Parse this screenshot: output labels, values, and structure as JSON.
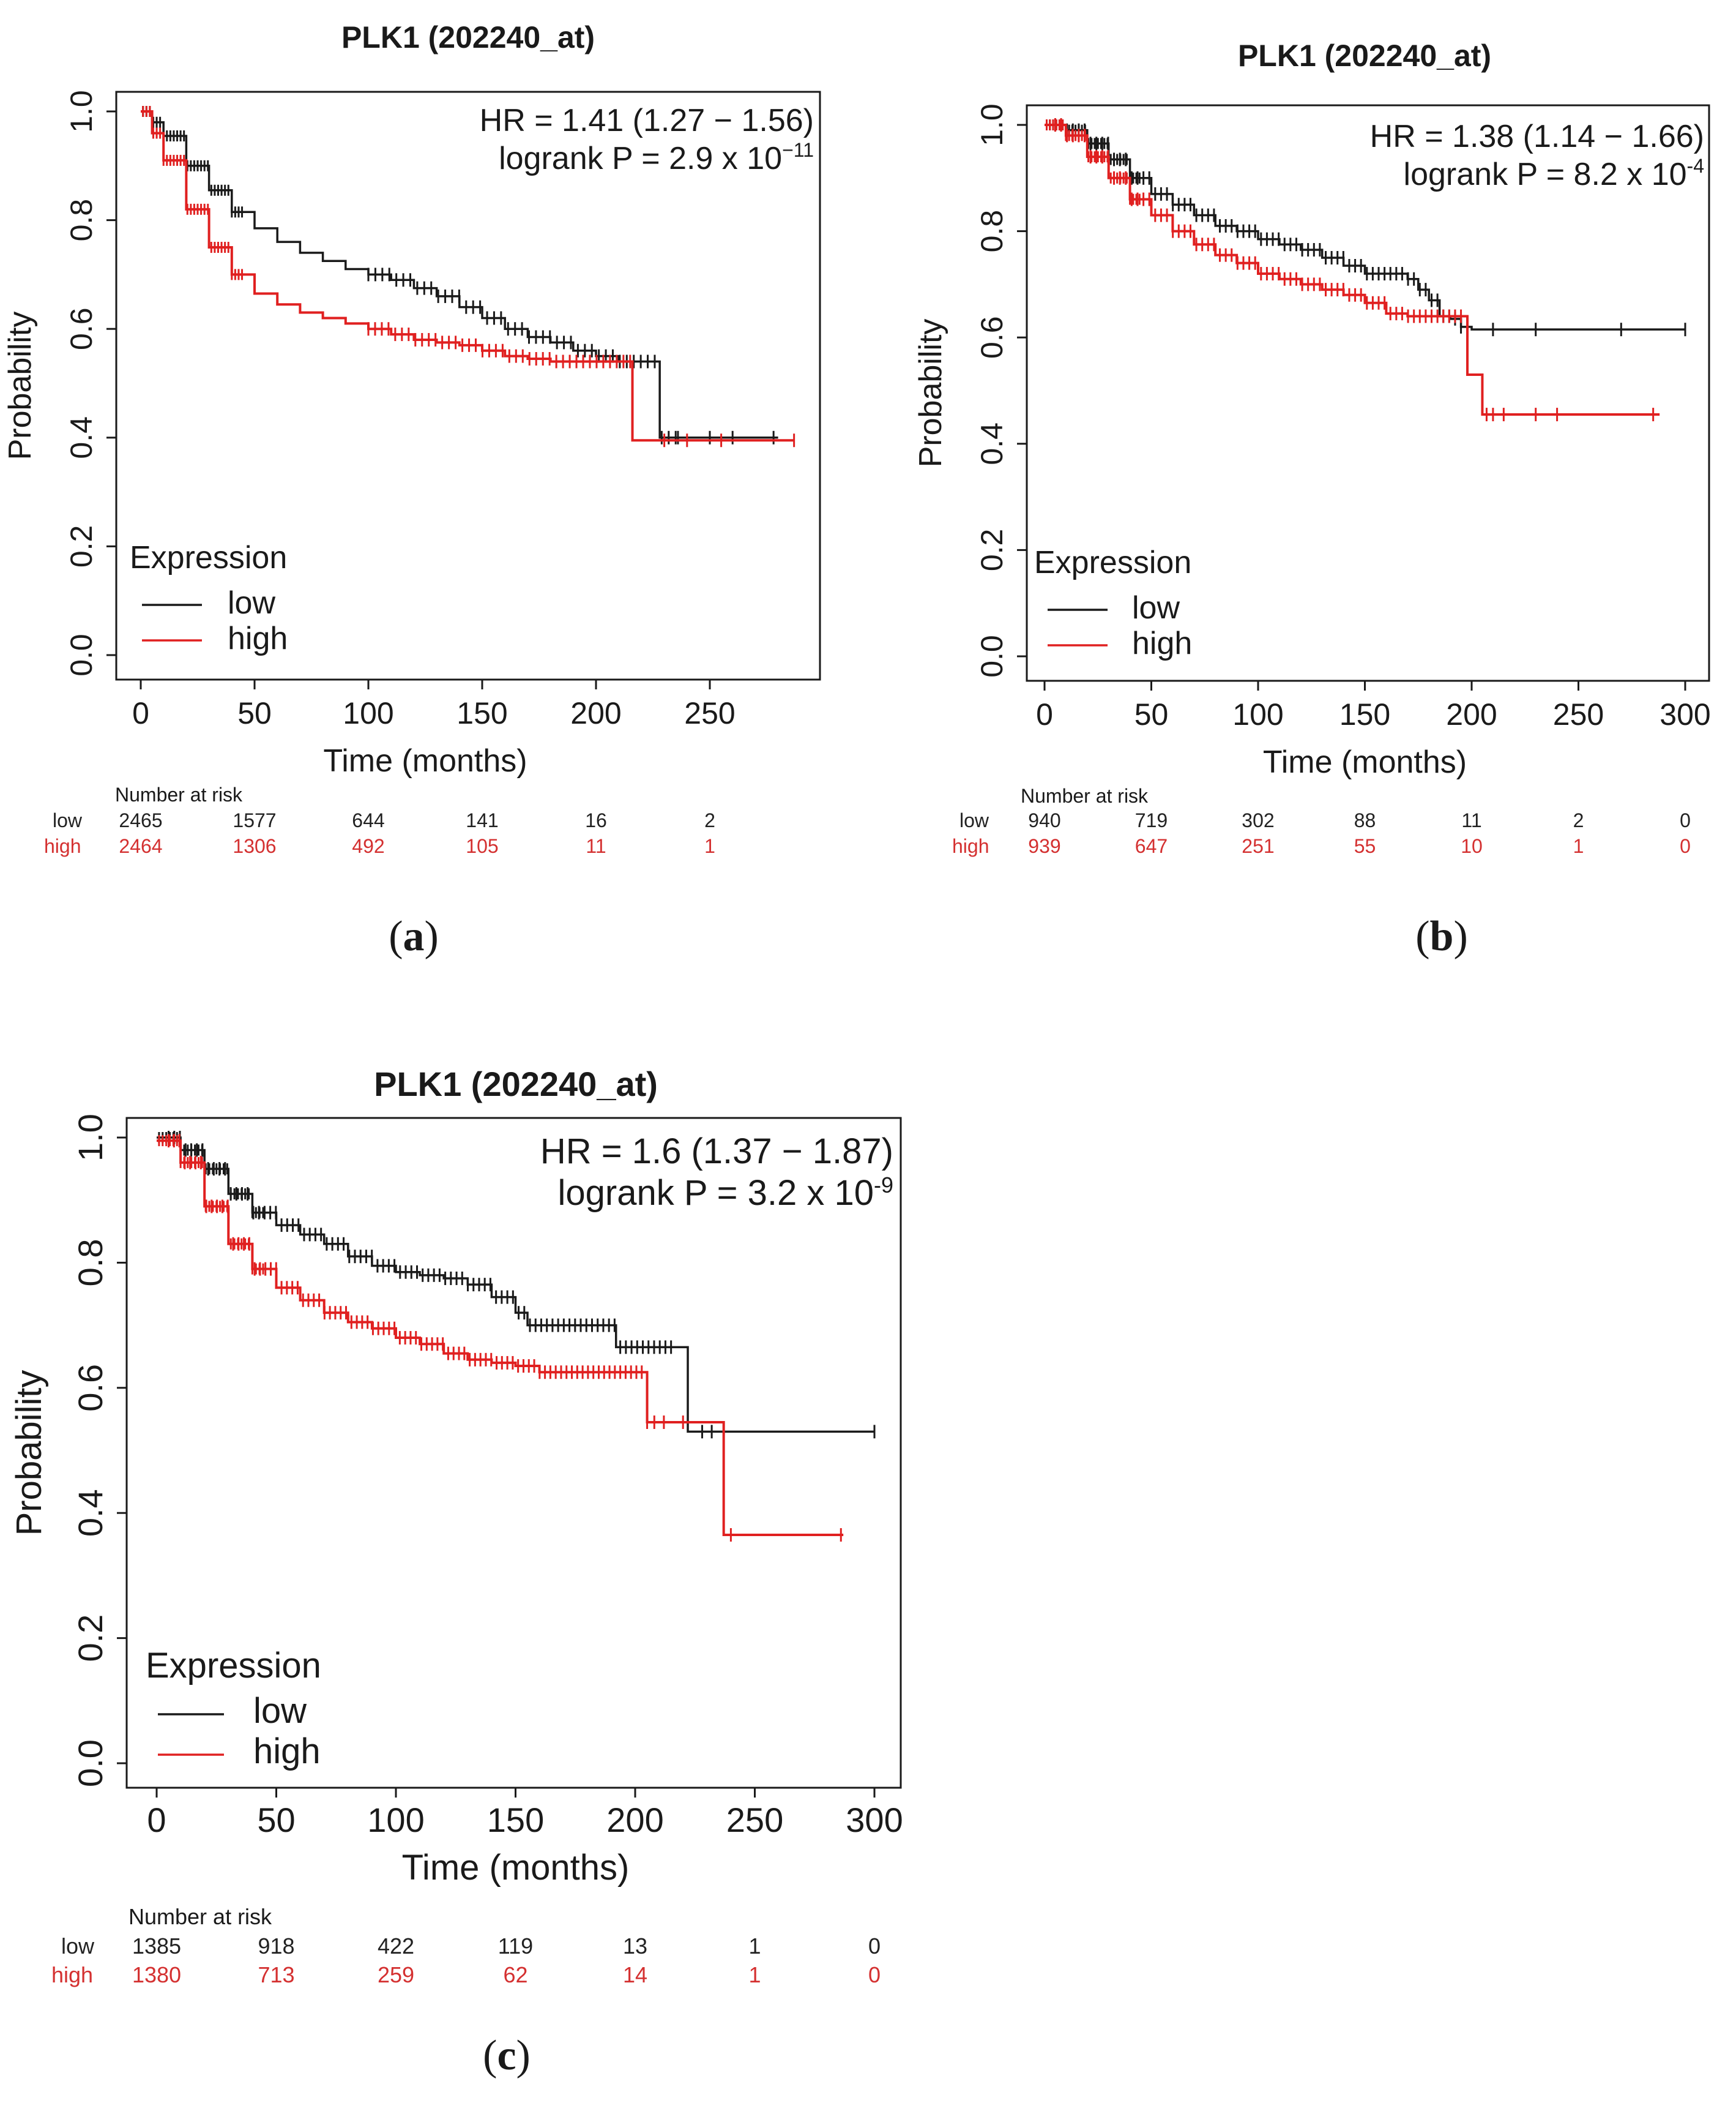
{
  "chart_data": [
    {
      "id": "a",
      "type": "line",
      "subtype": "kaplan-meier",
      "title": "PLK1 (202240_at)",
      "xlabel": "Time (months)",
      "ylabel": "Probability",
      "xlim": [
        0,
        290
      ],
      "ylim": [
        0,
        1
      ],
      "xticks": [
        "0",
        "50",
        "100",
        "150",
        "200",
        "250"
      ],
      "yticks": [
        "0.0",
        "0.2",
        "0.4",
        "0.6",
        "0.8",
        "1.0"
      ],
      "hr_text": "HR = 1.41 (1.27 − 1.56)",
      "logrank_text": "logrank P = 2.9 x 10",
      "logrank_exp": "−11",
      "legend": {
        "title": "Expression",
        "entries": [
          "low",
          "high"
        ]
      },
      "colors": {
        "low": "#1a1a1a",
        "high": "#e02020"
      },
      "series": [
        {
          "name": "low",
          "points": [
            [
              0,
              1.0
            ],
            [
              5,
              0.98
            ],
            [
              10,
              0.955
            ],
            [
              20,
              0.9
            ],
            [
              30,
              0.855
            ],
            [
              40,
              0.815
            ],
            [
              50,
              0.785
            ],
            [
              60,
              0.76
            ],
            [
              70,
              0.74
            ],
            [
              80,
              0.725
            ],
            [
              90,
              0.71
            ],
            [
              100,
              0.7
            ],
            [
              110,
              0.69
            ],
            [
              120,
              0.675
            ],
            [
              130,
              0.66
            ],
            [
              140,
              0.64
            ],
            [
              150,
              0.62
            ],
            [
              160,
              0.6
            ],
            [
              170,
              0.585
            ],
            [
              180,
              0.575
            ],
            [
              190,
              0.56
            ],
            [
              200,
              0.55
            ],
            [
              210,
              0.54
            ],
            [
              228,
              0.54
            ],
            [
              228,
              0.4
            ],
            [
              280,
              0.4
            ]
          ],
          "censor_start": 100,
          "censor_end": 235,
          "censor_count": 45,
          "late_censors": [
            [
              236,
              0.4
            ],
            [
              250,
              0.4
            ],
            [
              260,
              0.4
            ],
            [
              278,
              0.4
            ]
          ]
        },
        {
          "name": "high",
          "points": [
            [
              0,
              1.0
            ],
            [
              5,
              0.96
            ],
            [
              10,
              0.91
            ],
            [
              20,
              0.82
            ],
            [
              30,
              0.75
            ],
            [
              40,
              0.7
            ],
            [
              50,
              0.665
            ],
            [
              60,
              0.645
            ],
            [
              70,
              0.63
            ],
            [
              80,
              0.62
            ],
            [
              90,
              0.61
            ],
            [
              100,
              0.6
            ],
            [
              110,
              0.59
            ],
            [
              120,
              0.58
            ],
            [
              130,
              0.575
            ],
            [
              140,
              0.57
            ],
            [
              150,
              0.56
            ],
            [
              160,
              0.55
            ],
            [
              170,
              0.545
            ],
            [
              180,
              0.54
            ],
            [
              195,
              0.54
            ],
            [
              216,
              0.54
            ],
            [
              216,
              0.395
            ],
            [
              287,
              0.395
            ]
          ],
          "censor_start": 100,
          "censor_end": 215,
          "censor_count": 40,
          "late_censors": [
            [
              230,
              0.395
            ],
            [
              240,
              0.395
            ],
            [
              255,
              0.395
            ],
            [
              287,
              0.395
            ]
          ]
        }
      ],
      "risk_table": {
        "title": "Number at risk",
        "times": [
          0,
          50,
          100,
          150,
          200,
          250
        ],
        "low": {
          "label": "low",
          "values": [
            "2465",
            "1577",
            "644",
            "141",
            "16",
            "2"
          ]
        },
        "high": {
          "label": "high",
          "values": [
            "2464",
            "1306",
            "492",
            "105",
            "11",
            "1"
          ]
        }
      },
      "panel_label": "a"
    },
    {
      "id": "b",
      "type": "line",
      "subtype": "kaplan-meier",
      "title": "PLK1 (202240_at)",
      "xlabel": "Time (months)",
      "ylabel": "Probability",
      "xlim": [
        0,
        300
      ],
      "ylim": [
        0,
        1
      ],
      "xticks": [
        "0",
        "50",
        "100",
        "150",
        "200",
        "250",
        "300"
      ],
      "yticks": [
        "0.0",
        "0.2",
        "0.4",
        "0.6",
        "0.8",
        "1.0"
      ],
      "hr_text": "HR = 1.38 (1.14 − 1.66)",
      "logrank_text": "logrank P = 8.2 x 10",
      "logrank_exp": "-4",
      "legend": {
        "title": "Expression",
        "entries": [
          "low",
          "high"
        ]
      },
      "colors": {
        "low": "#1a1a1a",
        "high": "#e02020"
      },
      "series": [
        {
          "name": "low",
          "points": [
            [
              0,
              1.0
            ],
            [
              10,
              0.99
            ],
            [
              20,
              0.965
            ],
            [
              30,
              0.935
            ],
            [
              40,
              0.9
            ],
            [
              50,
              0.87
            ],
            [
              60,
              0.85
            ],
            [
              70,
              0.83
            ],
            [
              80,
              0.81
            ],
            [
              90,
              0.8
            ],
            [
              100,
              0.785
            ],
            [
              110,
              0.775
            ],
            [
              120,
              0.765
            ],
            [
              130,
              0.75
            ],
            [
              140,
              0.735
            ],
            [
              150,
              0.72
            ],
            [
              170,
              0.71
            ],
            [
              175,
              0.69
            ],
            [
              180,
              0.67
            ],
            [
              185,
              0.64
            ],
            [
              190,
              0.635
            ],
            [
              195,
              0.62
            ],
            [
              200,
              0.615
            ],
            [
              300,
              0.615
            ]
          ],
          "censor_start": 5,
          "censor_end": 195,
          "censor_count": 70,
          "late_censors": [
            [
              210,
              0.615
            ],
            [
              230,
              0.615
            ],
            [
              270,
              0.615
            ],
            [
              300,
              0.615
            ]
          ]
        },
        {
          "name": "high",
          "points": [
            [
              0,
              1.0
            ],
            [
              10,
              0.98
            ],
            [
              20,
              0.94
            ],
            [
              30,
              0.9
            ],
            [
              40,
              0.86
            ],
            [
              50,
              0.83
            ],
            [
              60,
              0.8
            ],
            [
              70,
              0.775
            ],
            [
              80,
              0.755
            ],
            [
              90,
              0.74
            ],
            [
              100,
              0.72
            ],
            [
              110,
              0.71
            ],
            [
              120,
              0.7
            ],
            [
              130,
              0.69
            ],
            [
              140,
              0.68
            ],
            [
              150,
              0.665
            ],
            [
              160,
              0.645
            ],
            [
              170,
              0.64
            ],
            [
              190,
              0.64
            ],
            [
              198,
              0.64
            ],
            [
              198,
              0.53
            ],
            [
              205,
              0.53
            ],
            [
              205,
              0.455
            ],
            [
              288,
              0.455
            ]
          ],
          "censor_start": 5,
          "censor_end": 195,
          "censor_count": 70,
          "late_censors": [
            [
              207,
              0.455
            ],
            [
              210,
              0.455
            ],
            [
              215,
              0.455
            ],
            [
              230,
              0.455
            ],
            [
              240,
              0.455
            ],
            [
              285,
              0.455
            ]
          ]
        }
      ],
      "risk_table": {
        "title": "Number at risk",
        "times": [
          0,
          50,
          100,
          150,
          200,
          250,
          300
        ],
        "low": {
          "label": "low",
          "values": [
            "940",
            "719",
            "302",
            "88",
            "11",
            "2",
            "0"
          ]
        },
        "high": {
          "label": "high",
          "values": [
            "939",
            "647",
            "251",
            "55",
            "10",
            "1",
            "0"
          ]
        }
      },
      "panel_label": "b"
    },
    {
      "id": "c",
      "type": "line",
      "subtype": "kaplan-meier",
      "title": "PLK1 (202240_at)",
      "xlabel": "Time (months)",
      "ylabel": "Probability",
      "xlim": [
        0,
        300
      ],
      "ylim": [
        0,
        1
      ],
      "xticks": [
        "0",
        "50",
        "100",
        "150",
        "200",
        "250",
        "300"
      ],
      "yticks": [
        "0.0",
        "0.2",
        "0.4",
        "0.6",
        "0.8",
        "1.0"
      ],
      "hr_text": "HR = 1.6 (1.37 − 1.87)",
      "logrank_text": "logrank P = 3.2 x 10",
      "logrank_exp": "-9",
      "legend": {
        "title": "Expression",
        "entries": [
          "low",
          "high"
        ]
      },
      "colors": {
        "low": "#1a1a1a",
        "high": "#e02020"
      },
      "series": [
        {
          "name": "low",
          "points": [
            [
              0,
              1.0
            ],
            [
              10,
              0.98
            ],
            [
              20,
              0.95
            ],
            [
              30,
              0.91
            ],
            [
              40,
              0.88
            ],
            [
              50,
              0.86
            ],
            [
              60,
              0.845
            ],
            [
              70,
              0.83
            ],
            [
              80,
              0.81
            ],
            [
              90,
              0.795
            ],
            [
              100,
              0.785
            ],
            [
              110,
              0.78
            ],
            [
              120,
              0.775
            ],
            [
              130,
              0.765
            ],
            [
              140,
              0.745
            ],
            [
              150,
              0.72
            ],
            [
              155,
              0.7
            ],
            [
              190,
              0.7
            ],
            [
              192,
              0.665
            ],
            [
              222,
              0.665
            ],
            [
              222,
              0.53
            ],
            [
              300,
              0.53
            ]
          ],
          "censor_start": 5,
          "censor_end": 215,
          "censor_count": 90,
          "late_censors": [
            [
              228,
              0.53
            ],
            [
              232,
              0.53
            ],
            [
              300,
              0.53
            ]
          ]
        },
        {
          "name": "high",
          "points": [
            [
              0,
              0.995
            ],
            [
              10,
              0.96
            ],
            [
              20,
              0.89
            ],
            [
              30,
              0.83
            ],
            [
              40,
              0.79
            ],
            [
              50,
              0.76
            ],
            [
              60,
              0.74
            ],
            [
              70,
              0.72
            ],
            [
              80,
              0.705
            ],
            [
              90,
              0.695
            ],
            [
              100,
              0.68
            ],
            [
              110,
              0.67
            ],
            [
              120,
              0.655
            ],
            [
              130,
              0.645
            ],
            [
              140,
              0.64
            ],
            [
              150,
              0.635
            ],
            [
              160,
              0.625
            ],
            [
              200,
              0.625
            ],
            [
              205,
              0.625
            ],
            [
              205,
              0.545
            ],
            [
              237,
              0.545
            ],
            [
              237,
              0.365
            ],
            [
              287,
              0.365
            ]
          ],
          "censor_start": 5,
          "censor_end": 205,
          "censor_count": 90,
          "late_censors": [
            [
              208,
              0.545
            ],
            [
              212,
              0.545
            ],
            [
              220,
              0.545
            ],
            [
              240,
              0.365
            ],
            [
              286,
              0.365
            ]
          ]
        }
      ],
      "risk_table": {
        "title": "Number at risk",
        "times": [
          0,
          50,
          100,
          150,
          200,
          250,
          300
        ],
        "low": {
          "label": "low",
          "values": [
            "1385",
            "918",
            "422",
            "119",
            "13",
            "1",
            "0"
          ]
        },
        "high": {
          "label": "high",
          "values": [
            "1380",
            "713",
            "259",
            "62",
            "14",
            "1",
            "0"
          ]
        }
      },
      "panel_label": "c"
    }
  ]
}
